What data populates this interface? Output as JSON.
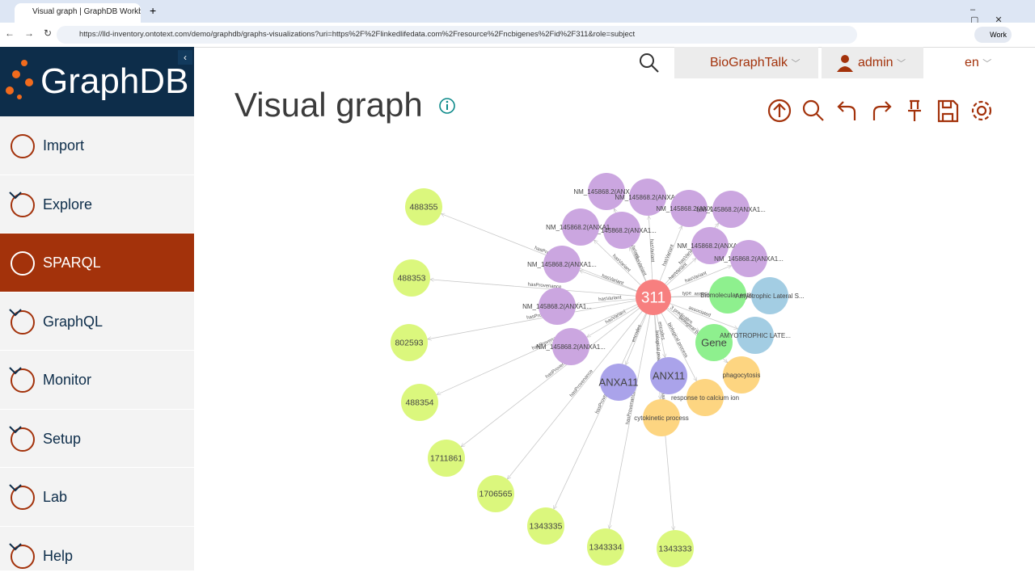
{
  "browser": {
    "tab_title": "Visual graph | GraphDB Workbe",
    "url": "https://lld-inventory.ontotext.com/demo/graphdb/graphs-visualizations?uri=https%2F%2Flinkedlifedata.com%2Fresource%2Fncbigenes%2Fid%2F311&role=subject",
    "profile": "Work"
  },
  "sidebar": {
    "logo": "GraphDB",
    "menu": [
      "Import",
      "Explore",
      "SPARQL",
      "GraphQL",
      "Monitor",
      "Setup",
      "Lab",
      "Help"
    ]
  },
  "topbar": {
    "repository": "BioGraphTalk",
    "user": "admin",
    "language": "en"
  },
  "page": {
    "title": "Visual graph"
  },
  "graph": {
    "nodes": [
      "311",
      "NM_145868.2(ANXA...",
      "NM_145868.2(ANXA...",
      "NM_145868.2(ANXA...",
      "NM_145868.2(ANXA1...",
      "NM_145868.2(ANXA1...",
      "NM_145868.2(ANXA1...",
      "NM_145868.2(ANXA...",
      "NM_145868.2(ANXA1...",
      "NM_145868.2(ANXA1...",
      "NM_145868.2(ANXA1...",
      "NM_145868.2(ANXA1...",
      "488355",
      "488353",
      "802593",
      "488354",
      "1711861",
      "1706565",
      "1343335",
      "1343334",
      "1343333",
      "Biomolecular entity",
      "Gene",
      "Amyotrophic Lateral S...",
      "AMYOTROPHIC LATE...",
      "ANXA11",
      "ANX11",
      "phagocytosis",
      "response to calcium ion",
      "cytokinetic process"
    ],
    "edges": [
      {
        "from": 0,
        "to": 1,
        "label": "hasVariant"
      },
      {
        "from": 0,
        "to": 2,
        "label": "hasVariant"
      },
      {
        "from": 0,
        "to": 3,
        "label": "hasVariant"
      },
      {
        "from": 0,
        "to": 4,
        "label": "hasVariant"
      },
      {
        "from": 0,
        "to": 5,
        "label": "hasVariant"
      },
      {
        "from": 0,
        "to": 6,
        "label": "hasVariant"
      },
      {
        "from": 0,
        "to": 7,
        "label": "hasVariant"
      },
      {
        "from": 0,
        "to": 8,
        "label": "hasVariant"
      },
      {
        "from": 0,
        "to": 9,
        "label": "hasVariant"
      },
      {
        "from": 0,
        "to": 10,
        "label": "hasVariant"
      },
      {
        "from": 0,
        "to": 11,
        "label": "hasVariant"
      },
      {
        "from": 0,
        "to": 12,
        "label": "hasProvenance"
      },
      {
        "from": 0,
        "to": 13,
        "label": "hasProvenance"
      },
      {
        "from": 0,
        "to": 14,
        "label": "hasProvenance"
      },
      {
        "from": 0,
        "to": 15,
        "label": "hasProvenance"
      },
      {
        "from": 0,
        "to": 16,
        "label": "hasProvenance"
      },
      {
        "from": 0,
        "to": 17,
        "label": "hasProvenance"
      },
      {
        "from": 0,
        "to": 18,
        "label": "hasProvenance"
      },
      {
        "from": 0,
        "to": 19,
        "label": "hasProvenance"
      },
      {
        "from": 0,
        "to": 20,
        "label": "hasProvenance"
      },
      {
        "from": 0,
        "to": 21,
        "label": "type"
      },
      {
        "from": 0,
        "to": 22,
        "label": "3 predicates"
      },
      {
        "from": 0,
        "to": 23,
        "label": "associated"
      },
      {
        "from": 0,
        "to": 24,
        "label": "associated"
      },
      {
        "from": 0,
        "to": 25,
        "label": "encodes"
      },
      {
        "from": 0,
        "to": 26,
        "label": "encodes"
      },
      {
        "from": 0,
        "to": 27,
        "label": "biological process"
      },
      {
        "from": 0,
        "to": 28,
        "label": "biological process"
      },
      {
        "from": 0,
        "to": 29,
        "label": "biological process"
      }
    ]
  }
}
